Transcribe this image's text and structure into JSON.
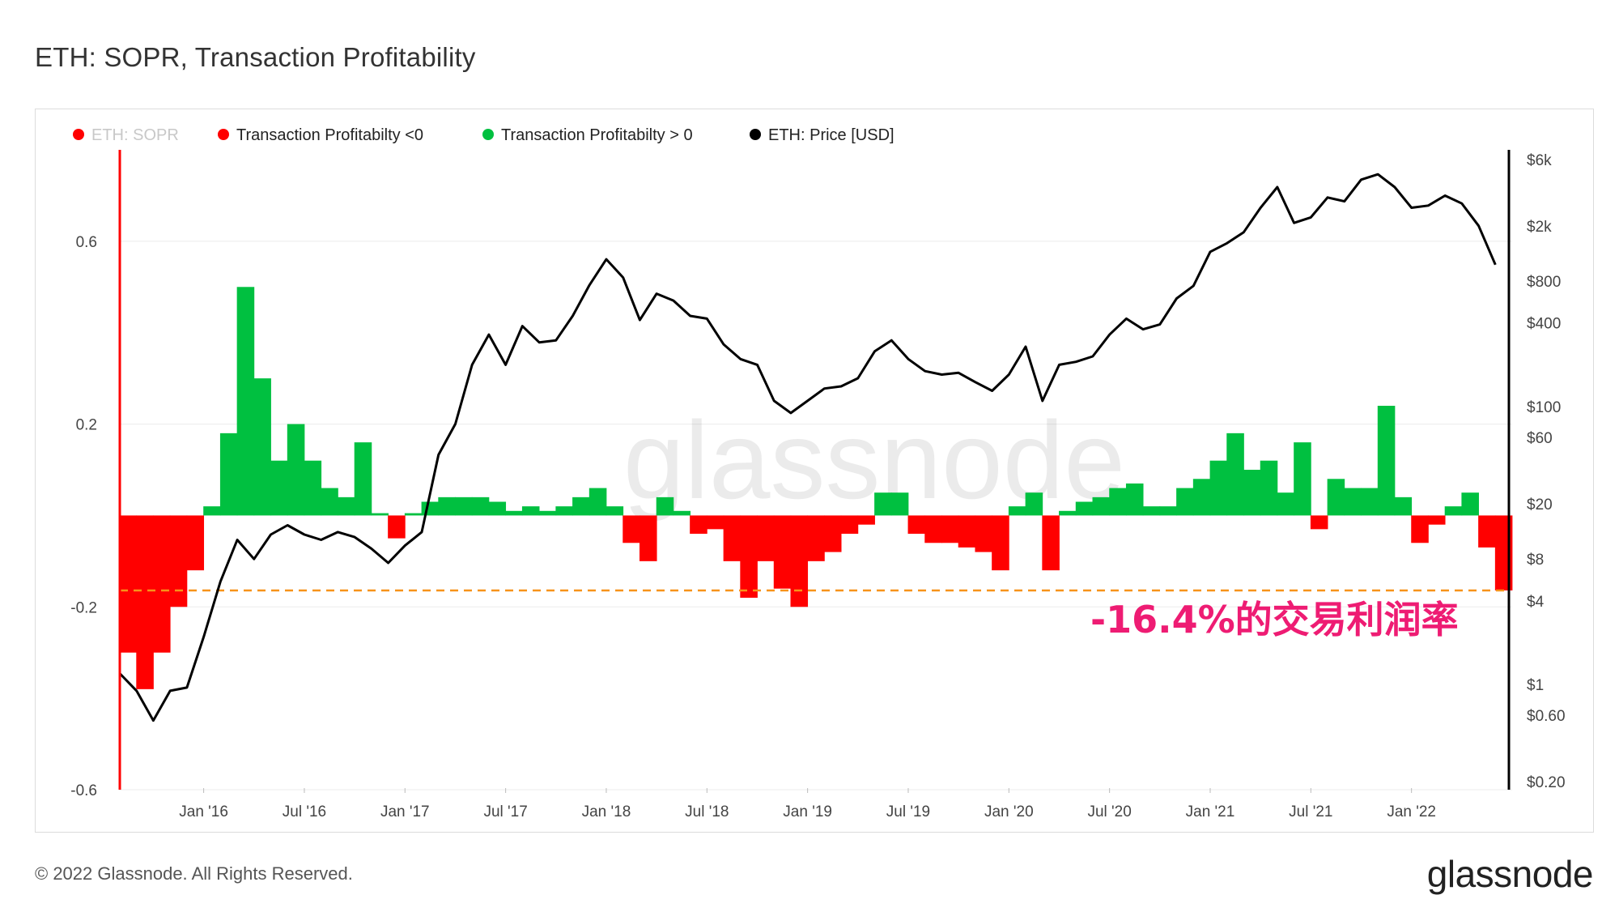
{
  "header": {
    "title": "ETH: SOPR, Transaction Profitability"
  },
  "footer": {
    "copyright": "© 2022 Glassnode. All Rights Reserved.",
    "brand": "glassnode"
  },
  "watermark": "glassnode",
  "colors": {
    "negative": "#ff0000",
    "positive": "#00c040",
    "price": "#000000",
    "sopr": "#ff0000",
    "reference": "#f7931a",
    "annotation": "#ee1c73"
  },
  "chart_data": {
    "type": "bar",
    "legend": [
      {
        "label": "ETH: SOPR",
        "color": "#ff0000",
        "muted": true
      },
      {
        "label": "Transaction Profitabilty <0",
        "color": "#ff0000",
        "muted": false
      },
      {
        "label": "Transaction Profitabilty > 0",
        "color": "#00c040",
        "muted": false
      },
      {
        "label": "ETH: Price [USD]",
        "color": "#000000",
        "muted": false
      }
    ],
    "x_ticks": [
      "Jan '16",
      "Jul '16",
      "Jan '17",
      "Jul '17",
      "Jan '18",
      "Jul '18",
      "Jan '19",
      "Jul '19",
      "Jan '20",
      "Jul '20",
      "Jan '21",
      "Jul '21",
      "Jan '22"
    ],
    "x_range": [
      "2015-08",
      "2022-06"
    ],
    "y_left_ticks": [
      "0.6",
      "0.2",
      "-0.2",
      "-0.6"
    ],
    "y_left_range": [
      -0.6,
      0.8
    ],
    "y_right_ticks": [
      "$6k",
      "$2k",
      "$800",
      "$400",
      "$100",
      "$60",
      "$20",
      "$8",
      "$4",
      "$1",
      "$0.60",
      "$0.20"
    ],
    "y_right_scale": "log",
    "reference_line": {
      "value": -0.164,
      "style": "dashed"
    },
    "annotation": "-16.4%的交易利润率",
    "series": [
      {
        "name": "Transaction Profitabilty <0 / > 0",
        "unit": "ratio",
        "points": [
          [
            "2015-08",
            -0.3
          ],
          [
            "2015-09",
            -0.38
          ],
          [
            "2015-10",
            -0.3
          ],
          [
            "2015-11",
            -0.2
          ],
          [
            "2015-12",
            -0.12
          ],
          [
            "2016-01",
            0.02
          ],
          [
            "2016-02",
            0.18
          ],
          [
            "2016-03",
            0.5
          ],
          [
            "2016-04",
            0.3
          ],
          [
            "2016-05",
            0.12
          ],
          [
            "2016-06",
            0.2
          ],
          [
            "2016-07",
            0.12
          ],
          [
            "2016-08",
            0.06
          ],
          [
            "2016-09",
            0.04
          ],
          [
            "2016-10",
            0.16
          ],
          [
            "2016-11",
            0.005
          ],
          [
            "2016-12",
            -0.05
          ],
          [
            "2017-01",
            0.005
          ],
          [
            "2017-02",
            0.03
          ],
          [
            "2017-03",
            0.04
          ],
          [
            "2017-04",
            0.04
          ],
          [
            "2017-05",
            0.04
          ],
          [
            "2017-06",
            0.03
          ],
          [
            "2017-07",
            0.01
          ],
          [
            "2017-08",
            0.02
          ],
          [
            "2017-09",
            0.01
          ],
          [
            "2017-10",
            0.02
          ],
          [
            "2017-11",
            0.04
          ],
          [
            "2017-12",
            0.06
          ],
          [
            "2018-01",
            0.02
          ],
          [
            "2018-02",
            -0.06
          ],
          [
            "2018-03",
            -0.1
          ],
          [
            "2018-04",
            0.04
          ],
          [
            "2018-05",
            0.01
          ],
          [
            "2018-06",
            -0.04
          ],
          [
            "2018-07",
            -0.03
          ],
          [
            "2018-08",
            -0.1
          ],
          [
            "2018-09",
            -0.18
          ],
          [
            "2018-10",
            -0.1
          ],
          [
            "2018-11",
            -0.16
          ],
          [
            "2018-12",
            -0.2
          ],
          [
            "2019-01",
            -0.1
          ],
          [
            "2019-02",
            -0.08
          ],
          [
            "2019-03",
            -0.04
          ],
          [
            "2019-04",
            -0.02
          ],
          [
            "2019-05",
            0.05
          ],
          [
            "2019-06",
            0.05
          ],
          [
            "2019-07",
            -0.04
          ],
          [
            "2019-08",
            -0.06
          ],
          [
            "2019-09",
            -0.06
          ],
          [
            "2019-10",
            -0.07
          ],
          [
            "2019-11",
            -0.08
          ],
          [
            "2019-12",
            -0.12
          ],
          [
            "2020-01",
            0.02
          ],
          [
            "2020-02",
            0.05
          ],
          [
            "2020-03",
            -0.12
          ],
          [
            "2020-04",
            0.01
          ],
          [
            "2020-05",
            0.03
          ],
          [
            "2020-06",
            0.04
          ],
          [
            "2020-07",
            0.06
          ],
          [
            "2020-08",
            0.07
          ],
          [
            "2020-09",
            0.02
          ],
          [
            "2020-10",
            0.02
          ],
          [
            "2020-11",
            0.06
          ],
          [
            "2020-12",
            0.08
          ],
          [
            "2021-01",
            0.12
          ],
          [
            "2021-02",
            0.18
          ],
          [
            "2021-03",
            0.1
          ],
          [
            "2021-04",
            0.12
          ],
          [
            "2021-05",
            0.05
          ],
          [
            "2021-06",
            0.16
          ],
          [
            "2021-07",
            -0.03
          ],
          [
            "2021-08",
            0.08
          ],
          [
            "2021-09",
            0.06
          ],
          [
            "2021-10",
            0.06
          ],
          [
            "2021-11",
            0.24
          ],
          [
            "2021-12",
            0.04
          ],
          [
            "2022-01",
            -0.06
          ],
          [
            "2022-02",
            -0.02
          ],
          [
            "2022-03",
            0.02
          ],
          [
            "2022-04",
            0.05
          ],
          [
            "2022-05",
            -0.07
          ],
          [
            "2022-06",
            -0.164
          ]
        ]
      },
      {
        "name": "ETH: Price [USD]",
        "unit": "USD",
        "points": [
          [
            "2015-08",
            1.2
          ],
          [
            "2015-09",
            0.9
          ],
          [
            "2015-10",
            0.55
          ],
          [
            "2015-11",
            0.9
          ],
          [
            "2015-12",
            0.95
          ],
          [
            "2016-01",
            2.2
          ],
          [
            "2016-02",
            5.5
          ],
          [
            "2016-03",
            11
          ],
          [
            "2016-04",
            8
          ],
          [
            "2016-05",
            12
          ],
          [
            "2016-06",
            14
          ],
          [
            "2016-07",
            12
          ],
          [
            "2016-08",
            11
          ],
          [
            "2016-09",
            12.5
          ],
          [
            "2016-10",
            11.5
          ],
          [
            "2016-11",
            9.5
          ],
          [
            "2016-12",
            7.5
          ],
          [
            "2017-01",
            10
          ],
          [
            "2017-02",
            12.5
          ],
          [
            "2017-03",
            45
          ],
          [
            "2017-04",
            75
          ],
          [
            "2017-05",
            200
          ],
          [
            "2017-06",
            330
          ],
          [
            "2017-07",
            200
          ],
          [
            "2017-08",
            380
          ],
          [
            "2017-09",
            290
          ],
          [
            "2017-10",
            300
          ],
          [
            "2017-11",
            450
          ],
          [
            "2017-12",
            750
          ],
          [
            "2018-01",
            1150
          ],
          [
            "2018-02",
            850
          ],
          [
            "2018-03",
            420
          ],
          [
            "2018-04",
            650
          ],
          [
            "2018-05",
            580
          ],
          [
            "2018-06",
            450
          ],
          [
            "2018-07",
            430
          ],
          [
            "2018-08",
            280
          ],
          [
            "2018-09",
            220
          ],
          [
            "2018-10",
            200
          ],
          [
            "2018-11",
            110
          ],
          [
            "2018-12",
            90
          ],
          [
            "2019-01",
            110
          ],
          [
            "2019-02",
            135
          ],
          [
            "2019-03",
            140
          ],
          [
            "2019-04",
            160
          ],
          [
            "2019-05",
            250
          ],
          [
            "2019-06",
            300
          ],
          [
            "2019-07",
            220
          ],
          [
            "2019-08",
            180
          ],
          [
            "2019-09",
            170
          ],
          [
            "2019-10",
            175
          ],
          [
            "2019-11",
            150
          ],
          [
            "2019-12",
            130
          ],
          [
            "2020-01",
            170
          ],
          [
            "2020-02",
            270
          ],
          [
            "2020-03",
            110
          ],
          [
            "2020-04",
            200
          ],
          [
            "2020-05",
            210
          ],
          [
            "2020-06",
            230
          ],
          [
            "2020-07",
            330
          ],
          [
            "2020-08",
            430
          ],
          [
            "2020-09",
            360
          ],
          [
            "2020-10",
            390
          ],
          [
            "2020-11",
            600
          ],
          [
            "2020-12",
            740
          ],
          [
            "2021-01",
            1300
          ],
          [
            "2021-02",
            1500
          ],
          [
            "2021-03",
            1800
          ],
          [
            "2021-04",
            2700
          ],
          [
            "2021-05",
            3800
          ],
          [
            "2021-06",
            2100
          ],
          [
            "2021-07",
            2300
          ],
          [
            "2021-08",
            3200
          ],
          [
            "2021-09",
            3000
          ],
          [
            "2021-10",
            4300
          ],
          [
            "2021-11",
            4700
          ],
          [
            "2021-12",
            3800
          ],
          [
            "2022-01",
            2700
          ],
          [
            "2022-02",
            2800
          ],
          [
            "2022-03",
            3300
          ],
          [
            "2022-04",
            2900
          ],
          [
            "2022-05",
            2000
          ],
          [
            "2022-06",
            1050
          ]
        ]
      }
    ]
  }
}
